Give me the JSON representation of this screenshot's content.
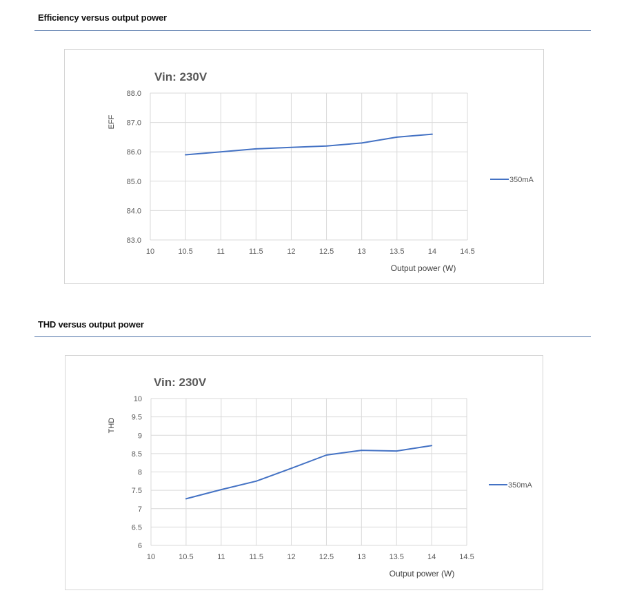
{
  "sections": [
    {
      "heading": "Efficiency versus output power",
      "chart_data": {
        "type": "line",
        "title": "Vin: 230V",
        "xlabel": "Output power (W)",
        "ylabel": "EFF",
        "xlim": [
          10,
          14.5
        ],
        "ylim": [
          83.0,
          88.0
        ],
        "x_ticks": [
          "10",
          "10.5",
          "11",
          "11.5",
          "12",
          "12.5",
          "13",
          "13.5",
          "14",
          "14.5"
        ],
        "y_ticks": [
          "83.0",
          "84.0",
          "85.0",
          "86.0",
          "87.0",
          "88.0"
        ],
        "grid": true,
        "legend": "right",
        "series": [
          {
            "name": "350mA",
            "color": "#4472c4",
            "x": [
              10.5,
              11,
              11.5,
              12,
              12.5,
              13,
              13.5,
              14
            ],
            "y": [
              85.9,
              86.0,
              86.1,
              86.15,
              86.2,
              86.3,
              86.5,
              86.6
            ]
          }
        ]
      }
    },
    {
      "heading": "THD versus output power",
      "chart_data": {
        "type": "line",
        "title": "Vin: 230V",
        "xlabel": "Output power (W)",
        "ylabel": "THD",
        "xlim": [
          10,
          14.5
        ],
        "ylim": [
          6,
          10
        ],
        "x_ticks": [
          "10",
          "10.5",
          "11",
          "11.5",
          "12",
          "12.5",
          "13",
          "13.5",
          "14",
          "14.5"
        ],
        "y_ticks": [
          "6",
          "6.5",
          "7",
          "7.5",
          "8",
          "8.5",
          "9",
          "9.5",
          "10"
        ],
        "grid": true,
        "legend": "right",
        "series": [
          {
            "name": "350mA",
            "color": "#4472c4",
            "x": [
              10.5,
              11,
              11.5,
              12,
              12.5,
              13,
              13.5,
              14
            ],
            "y": [
              7.27,
              7.52,
              7.75,
              8.1,
              8.46,
              8.59,
              8.57,
              8.72
            ]
          }
        ]
      }
    }
  ]
}
